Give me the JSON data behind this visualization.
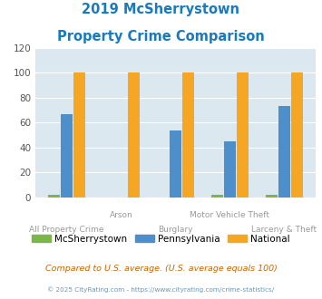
{
  "title_line1": "2019 McSherrystown",
  "title_line2": "Property Crime Comparison",
  "categories": [
    "All Property Crime",
    "Arson",
    "Burglary",
    "Motor Vehicle Theft",
    "Larceny & Theft"
  ],
  "mcsherrystown": [
    2,
    0,
    0,
    2,
    2
  ],
  "pennsylvania": [
    67,
    0,
    54,
    45,
    73
  ],
  "national": [
    100,
    100,
    100,
    100,
    100
  ],
  "colors": {
    "mcsherrystown": "#7ab648",
    "pennsylvania": "#4d8fcb",
    "national": "#f5a623"
  },
  "ylim": [
    0,
    120
  ],
  "yticks": [
    0,
    20,
    40,
    60,
    80,
    100,
    120
  ],
  "bg_color": "#dce8ef",
  "legend_labels": [
    "McSherrystown",
    "Pennsylvania",
    "National"
  ],
  "footnote1": "Compared to U.S. average. (U.S. average equals 100)",
  "footnote2": "© 2025 CityRating.com - https://www.cityrating.com/crime-statistics/",
  "title_color": "#1a7abf",
  "footnote1_color": "#c86400",
  "footnote2_color": "#6699bb",
  "xlabel_color": "#999999"
}
